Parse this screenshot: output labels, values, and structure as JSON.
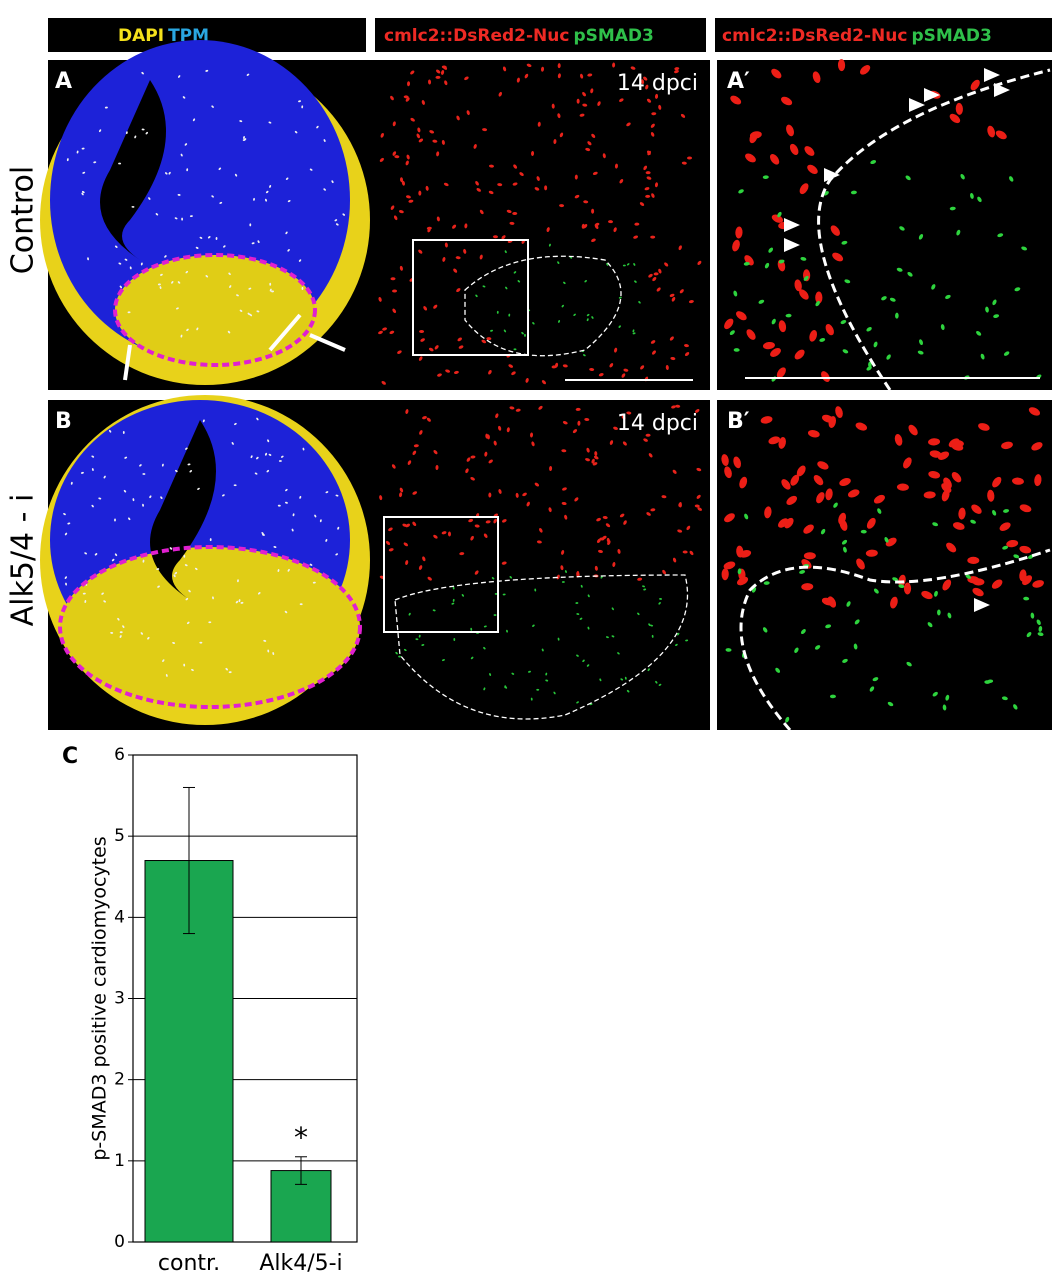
{
  "header": [
    {
      "parts": [
        "DAPI",
        "TPM"
      ]
    },
    {
      "parts": [
        "cmlc2::DsRed2-Nuc",
        "pSMAD3"
      ]
    },
    {
      "parts": [
        "cmlc2::DsRed2-Nuc",
        "pSMAD3"
      ]
    }
  ],
  "rows": [
    {
      "label": "Control",
      "panel": "A",
      "time": "14 dpci",
      "zoom": "A′"
    },
    {
      "label": "Alk5/4 - i",
      "panel": "B",
      "time": "14 dpci",
      "zoom": "B′"
    }
  ],
  "chart_data": {
    "type": "bar",
    "panel": "C",
    "ylabel": "p-SMAD3 positive cardiomyocytes",
    "categories": [
      "contr.",
      "Alk4/5-i"
    ],
    "values": [
      4.7,
      0.88
    ],
    "errors": [
      0.9,
      0.17
    ],
    "color": "#1aa650",
    "ylim": [
      0,
      6
    ],
    "yticks": [
      0,
      1,
      2,
      3,
      4,
      5,
      6
    ],
    "grid": true,
    "annotations": [
      {
        "text": "*",
        "category": 1
      }
    ]
  }
}
